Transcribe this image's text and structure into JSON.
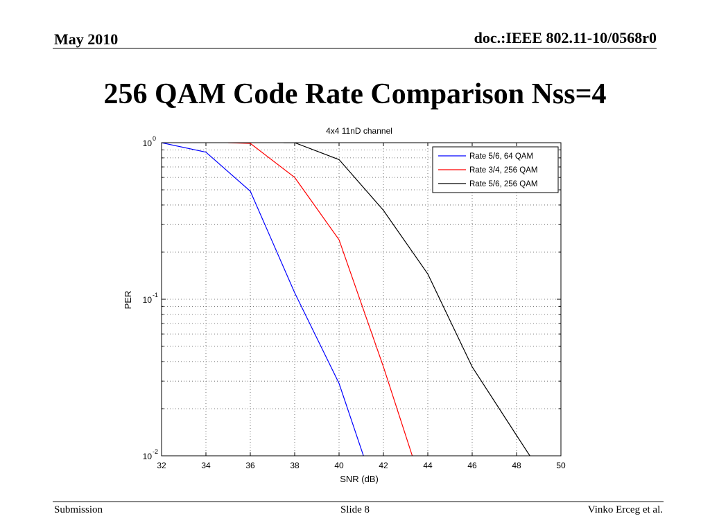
{
  "header": {
    "date": "May 2010",
    "doc_id": "doc.:IEEE 802.11-10/0568r0"
  },
  "slide_title": "256 QAM Code Rate Comparison Nss=4",
  "footer": {
    "left": "Submission",
    "center": "Slide 8",
    "right": "Vinko Erceg et al."
  },
  "chart_data": {
    "type": "line",
    "title": "4x4 11nD channel",
    "xlabel": "SNR (dB)",
    "ylabel": "PER",
    "xlim": [
      32,
      50
    ],
    "ylim": [
      0.01,
      1
    ],
    "yscale": "log",
    "grid": true,
    "legend_position": "top-right",
    "x_ticks": [
      32,
      34,
      36,
      38,
      40,
      42,
      44,
      46,
      48,
      50
    ],
    "y_ticks": [
      {
        "value": 1,
        "base": "10",
        "exp": "0"
      },
      {
        "value": 0.1,
        "base": "10",
        "exp": "-1"
      },
      {
        "value": 0.01,
        "base": "10",
        "exp": "-2"
      }
    ],
    "series": [
      {
        "name": "Rate 5/6, 64 QAM",
        "color": "#0000ff",
        "x": [
          32,
          34,
          36,
          38,
          40,
          41.1
        ],
        "y": [
          1.0,
          0.87,
          0.49,
          0.11,
          0.029,
          0.01
        ]
      },
      {
        "name": "Rate 3/4, 256 QAM",
        "color": "#ff0000",
        "x": [
          35,
          36,
          38,
          40,
          42,
          43.3
        ],
        "y": [
          1.0,
          0.99,
          0.6,
          0.24,
          0.037,
          0.01
        ]
      },
      {
        "name": "Rate 5/6, 256 QAM",
        "color": "#000000",
        "x": [
          37.5,
          38,
          40,
          42,
          44,
          46,
          48,
          48.6
        ],
        "y": [
          1.0,
          1.0,
          0.78,
          0.37,
          0.145,
          0.037,
          0.0135,
          0.01
        ]
      }
    ]
  }
}
